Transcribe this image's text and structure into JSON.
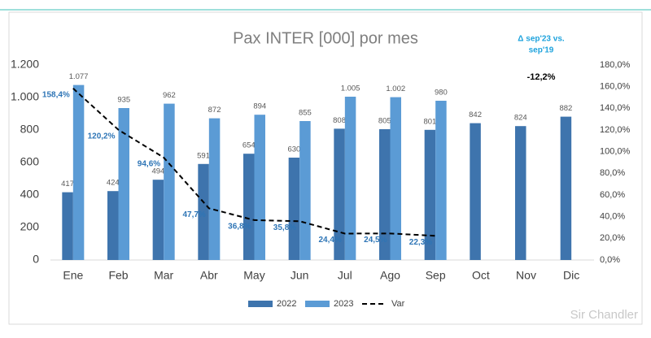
{
  "chart_data": {
    "type": "bar",
    "title": "Pax INTER [000] por mes",
    "categories": [
      "Ene",
      "Feb",
      "Mar",
      "Abr",
      "May",
      "Jun",
      "Jul",
      "Ago",
      "Sep",
      "Oct",
      "Nov",
      "Dic"
    ],
    "series": [
      {
        "name": "2022",
        "color": "#3e74ad",
        "values": [
          417,
          424,
          494,
          591,
          654,
          630,
          808,
          805,
          801,
          842,
          824,
          882
        ]
      },
      {
        "name": "2023",
        "color": "#5b9bd5",
        "values": [
          1077,
          935,
          962,
          872,
          894,
          855,
          1005,
          1002,
          980,
          null,
          null,
          null
        ],
        "value_labels": [
          "1.077",
          "935",
          "962",
          "872",
          "894",
          "855",
          "1.005",
          "1.002",
          "980",
          null,
          null,
          null
        ]
      },
      {
        "name": "Var",
        "color": "#000000",
        "axis": "y2",
        "style": "dashed",
        "values": [
          158.4,
          120.2,
          94.6,
          47.7,
          36.8,
          35.8,
          24.4,
          24.5,
          22.3,
          null,
          null,
          null
        ],
        "value_labels": [
          "158,4%",
          "120,2%",
          "94,6%",
          "47,7%",
          "36,8%",
          "35,8%",
          "24,4%",
          "24,5%",
          "22,3%",
          null,
          null,
          null
        ]
      }
    ],
    "ylim": [
      0,
      1200
    ],
    "yticks": [
      0,
      200,
      400,
      600,
      800,
      {
        "value": 1000,
        "label": "1.000"
      },
      {
        "value": 1200,
        "label": "1.200"
      }
    ],
    "y2lim": [
      0,
      180
    ],
    "y2ticks": [
      {
        "value": 0,
        "label": "0,0%"
      },
      {
        "value": 20,
        "label": "20,0%"
      },
      {
        "value": 40,
        "label": "40,0%"
      },
      {
        "value": 60,
        "label": "60,0%"
      },
      {
        "value": 80,
        "label": "80,0%"
      },
      {
        "value": 100,
        "label": "100,0%"
      },
      {
        "value": 120,
        "label": "120,0%"
      },
      {
        "value": 140,
        "label": "140,0%"
      },
      {
        "value": 160,
        "label": "160,0%"
      },
      {
        "value": 180,
        "label": "180,0%"
      }
    ],
    "annotations": [
      "Δ sep'23 vs.",
      "sep'19",
      "-12,2%"
    ],
    "watermark": "Sir Chandler",
    "legend": "bottom"
  }
}
